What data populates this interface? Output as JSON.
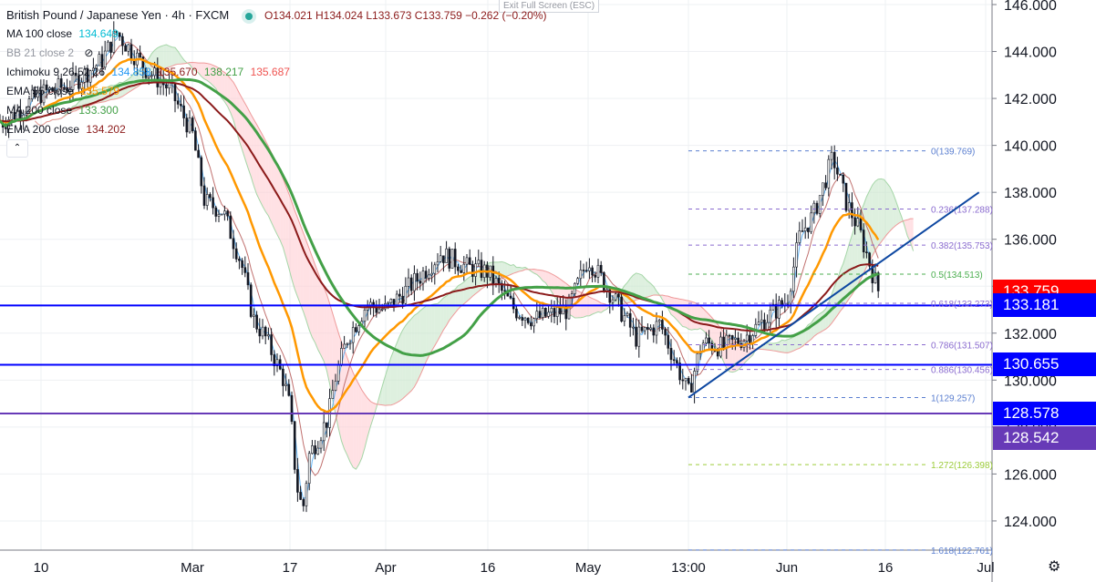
{
  "header": {
    "symbol_title": "British Pound / Japanese Yen · 4h · FXCM",
    "market_status_color": "#26a69a",
    "ohlc": "O134.021 H134.024 L133.673 C133.759 −0.262 (−0.20%)",
    "exit_fullscreen": "Exit Full Screen (ESC)"
  },
  "indicators": [
    {
      "label": "MA 100 close",
      "values": [
        "134.649"
      ],
      "color": "#00bcd4"
    },
    {
      "label": "BB 21 close 2",
      "values": [],
      "hidden": true,
      "icon": "eye-crossed-icon"
    },
    {
      "label": "Ichimoku 9 26 52 26",
      "values": [
        "134.858",
        "135.670",
        "138.217",
        "135.687"
      ],
      "colors": [
        "#2196f3",
        "#8b1a1a",
        "#43a047",
        "#ef5350"
      ]
    },
    {
      "label": "EMA 55 close",
      "values": [
        "135.579"
      ],
      "color": "#ff9800"
    },
    {
      "label": "MA 200 close",
      "values": [
        "133.300"
      ],
      "color": "#43a047"
    },
    {
      "label": "EMA 200 close",
      "values": [
        "134.202"
      ],
      "color": "#8b1a1a"
    }
  ],
  "collapse_icon": "chevron-up-icon",
  "settings_icon": "gear-icon",
  "chart_data": {
    "type": "candlestick",
    "interval": "4h",
    "y_ticks": [
      "146.000",
      "144.000",
      "142.000",
      "140.000",
      "138.000",
      "136.000",
      "134.000",
      "132.000",
      "130.000",
      "128.000",
      "126.000",
      "124.000"
    ],
    "ylim": [
      123,
      146.2
    ],
    "x_ticks": [
      {
        "label": "10",
        "date": "2020-02-10"
      },
      {
        "label": "Mar",
        "date": "2020-03-01"
      },
      {
        "label": "17",
        "date": "2020-03-17"
      },
      {
        "label": "Apr",
        "date": "2020-04-01"
      },
      {
        "label": "16",
        "date": "2020-04-16"
      },
      {
        "label": "May",
        "date": "2020-05-01"
      },
      {
        "label": "13:00",
        "date": "2020-05-13T13:00"
      },
      {
        "label": "Jun",
        "date": "2020-06-01"
      },
      {
        "label": "16",
        "date": "2020-06-16"
      },
      {
        "label": "Jul",
        "date": "2020-07-01"
      }
    ],
    "price_path": [
      [
        "2020-01-31",
        141.6
      ],
      [
        "2020-02-05",
        141.0
      ],
      [
        "2020-02-10",
        142.2
      ],
      [
        "2020-02-14",
        142.6
      ],
      [
        "2020-02-18",
        143.6
      ],
      [
        "2020-02-20",
        144.8
      ],
      [
        "2020-02-24",
        143.2
      ],
      [
        "2020-02-27",
        142.4
      ],
      [
        "2020-03-01",
        140.5
      ],
      [
        "2020-03-03",
        137.6
      ],
      [
        "2020-03-06",
        137.2
      ],
      [
        "2020-03-09",
        135.0
      ],
      [
        "2020-03-11",
        132.6
      ],
      [
        "2020-03-13",
        131.8
      ],
      [
        "2020-03-16",
        130.0
      ],
      [
        "2020-03-17",
        128.8
      ],
      [
        "2020-03-18",
        125.6
      ],
      [
        "2020-03-19",
        124.4
      ],
      [
        "2020-03-20",
        126.8
      ],
      [
        "2020-03-23",
        128.4
      ],
      [
        "2020-03-24",
        130.0
      ],
      [
        "2020-03-26",
        131.8
      ],
      [
        "2020-03-29",
        133.2
      ],
      [
        "2020-04-01",
        133.0
      ],
      [
        "2020-04-06",
        134.4
      ],
      [
        "2020-04-09",
        135.4
      ],
      [
        "2020-04-13",
        134.8
      ],
      [
        "2020-04-16",
        134.6
      ],
      [
        "2020-04-20",
        133.0
      ],
      [
        "2020-04-23",
        132.6
      ],
      [
        "2020-04-28",
        133.0
      ],
      [
        "2020-05-01",
        135.2
      ],
      [
        "2020-05-04",
        133.6
      ],
      [
        "2020-05-07",
        131.8
      ],
      [
        "2020-05-10",
        132.4
      ],
      [
        "2020-05-13T13:00",
        129.4
      ],
      [
        "2020-05-16",
        131.6
      ],
      [
        "2020-05-20",
        131.4
      ],
      [
        "2020-05-24",
        131.8
      ],
      [
        "2020-05-28",
        132.6
      ],
      [
        "2020-06-01",
        133.4
      ],
      [
        "2020-06-03",
        136.2
      ],
      [
        "2020-06-05",
        137.0
      ],
      [
        "2020-06-08",
        139.5
      ],
      [
        "2020-06-10",
        137.6
      ],
      [
        "2020-06-12",
        136.4
      ],
      [
        "2020-06-14",
        134.6
      ],
      [
        "2020-06-15",
        133.76
      ]
    ],
    "horizontal_lines": [
      {
        "price": 133.181,
        "label": "133.181",
        "color": "#0000ff"
      },
      {
        "price": 130.655,
        "label": "130.655",
        "color": "#0000ff"
      },
      {
        "price": 128.578,
        "label": "128.578",
        "color": "#673ab7"
      }
    ],
    "last_price": {
      "label": "133.759",
      "price": 133.759,
      "color": "#ff0000"
    },
    "extra_labels": [
      {
        "label": "128.578",
        "price": 128.578,
        "color": "#0000ff"
      },
      {
        "label": "128.542",
        "price": 128.542,
        "color": "#673ab7"
      }
    ],
    "fibonacci": {
      "start_date": "2020-05-13T13:00",
      "levels": [
        {
          "ratio": "0",
          "price": 139.769,
          "label": "0(139.769)",
          "color": "#5b7fd0"
        },
        {
          "ratio": "0.236",
          "price": 137.288,
          "label": "0.236(137.288)",
          "color": "#8a6bcf"
        },
        {
          "ratio": "0.382",
          "price": 135.753,
          "label": "0.382(135.753)",
          "color": "#8a6bcf"
        },
        {
          "ratio": "0.5",
          "price": 134.513,
          "label": "0.5(134.513)",
          "color": "#4caf50"
        },
        {
          "ratio": "0.618",
          "price": 133.273,
          "label": "0.618(133.273)",
          "color": "#8a6bcf"
        },
        {
          "ratio": "0.786",
          "price": 131.507,
          "label": "0.786(131.507)",
          "color": "#8a6bcf"
        },
        {
          "ratio": "0.886",
          "price": 130.456,
          "label": "0.886(130.456)",
          "color": "#8a6bcf"
        },
        {
          "ratio": "1",
          "price": 129.257,
          "label": "1(129.257)",
          "color": "#5b7fd0"
        },
        {
          "ratio": "1.272",
          "price": 126.398,
          "label": "1.272(126.398)",
          "color": "#9ccc3a"
        },
        {
          "ratio": "1.618",
          "price": 122.761,
          "label": "1.618(122.761)",
          "color": "#5b7fd0"
        }
      ]
    },
    "trendline": {
      "from": [
        "2020-05-13T13:00",
        129.257
      ],
      "to": [
        "2020-06-30",
        138.0
      ],
      "color": "#0d47a1"
    },
    "colors": {
      "up": "#131722",
      "down": "#131722",
      "ma100": "#00bcd4",
      "ema55": "#ff9800",
      "ma200": "#43a047",
      "ema200": "#8b1a1a",
      "cloud_bull": "#c8e6c9",
      "cloud_bear": "#ffcdd2"
    }
  }
}
